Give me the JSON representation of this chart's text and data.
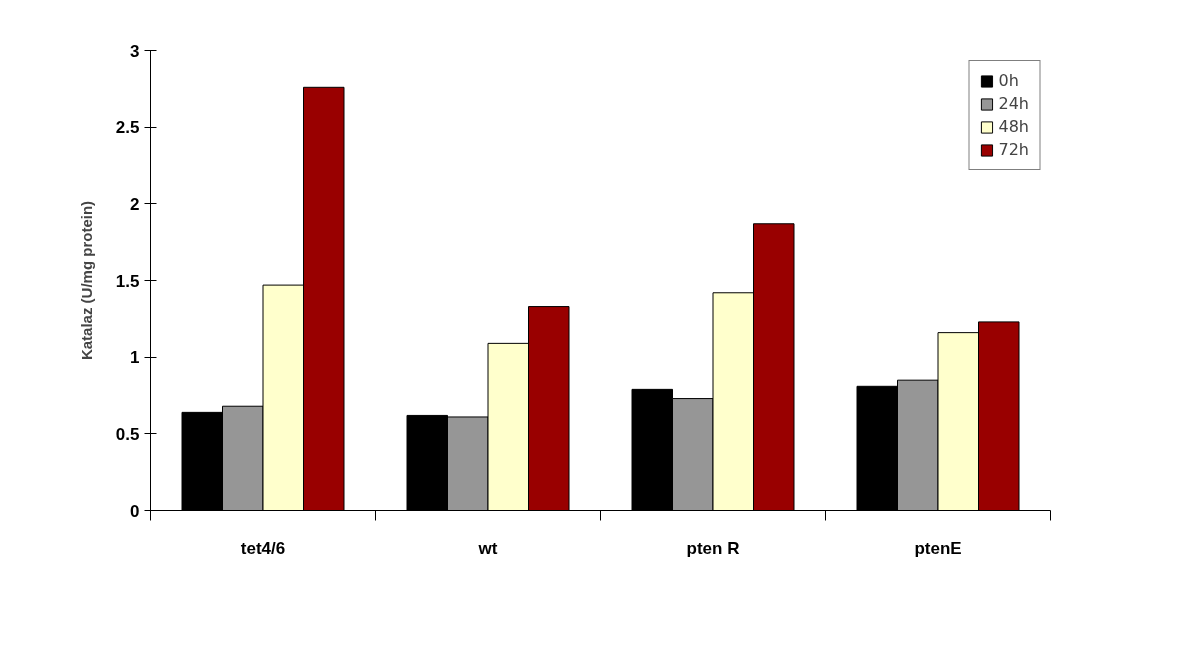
{
  "chart_data": {
    "type": "bar",
    "ylabel": "Katalaz (U/mg protein)",
    "categories": [
      "tet4/6",
      "wt",
      "pten R",
      "ptenE"
    ],
    "series": [
      {
        "name": "0h",
        "color": "#000000",
        "values": [
          0.64,
          0.62,
          0.79,
          0.81
        ]
      },
      {
        "name": "24h",
        "color": "#969696",
        "values": [
          0.68,
          0.61,
          0.73,
          0.85
        ]
      },
      {
        "name": "48h",
        "color": "#ffffcc",
        "values": [
          1.47,
          1.09,
          1.42,
          1.16
        ]
      },
      {
        "name": "72h",
        "color": "#990000",
        "values": [
          2.76,
          1.33,
          1.87,
          1.23
        ]
      }
    ],
    "ylim": [
      0,
      3
    ],
    "yticks": [
      0,
      0.5,
      1,
      1.5,
      2,
      2.5,
      3
    ],
    "grid": false,
    "legend": "top right"
  }
}
